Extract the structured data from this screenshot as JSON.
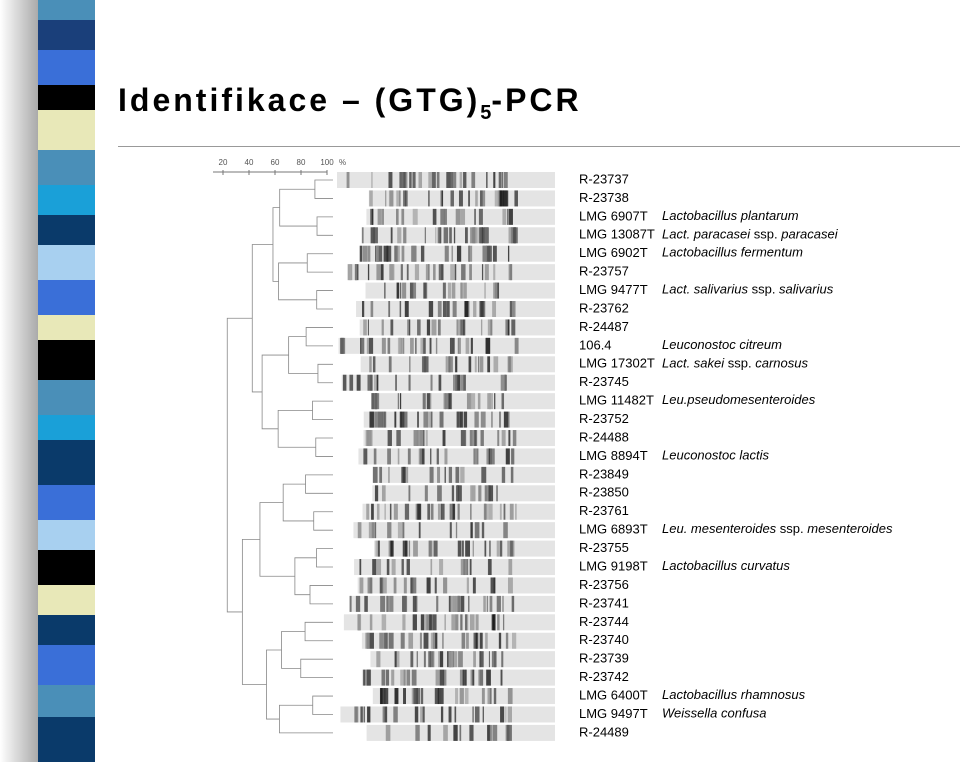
{
  "title": {
    "text": "Identifikace – (GTG)",
    "subscript": "5",
    "suffix": "-PCR"
  },
  "scale": {
    "ticks": [
      20,
      40,
      60,
      80,
      100
    ],
    "unit": "%"
  },
  "rows": [
    {
      "code": "R-23737",
      "name": null
    },
    {
      "code": "R-23738",
      "name": null
    },
    {
      "code": "LMG 6907T",
      "name": "Lactobacillus plantarum"
    },
    {
      "code": "LMG 13087T",
      "name": "Lact. paracasei ssp. paracasei"
    },
    {
      "code": "LMG 6902T",
      "name": "Lactobacillus fermentum"
    },
    {
      "code": "R-23757",
      "name": null
    },
    {
      "code": "LMG 9477T",
      "name": "Lact. salivarius ssp. salivarius"
    },
    {
      "code": "R-23762",
      "name": null
    },
    {
      "code": "R-24487",
      "name": null
    },
    {
      "code": "106.4",
      "name": "Leuconostoc citreum"
    },
    {
      "code": "LMG 17302T",
      "name": "Lact. sakei ssp. carnosus"
    },
    {
      "code": "R-23745",
      "name": null
    },
    {
      "code": "LMG 11482T",
      "name": "Leu.pseudomesenteroides"
    },
    {
      "code": "R-23752",
      "name": null
    },
    {
      "code": "R-24488",
      "name": null
    },
    {
      "code": "LMG 8894T",
      "name": "Leuconostoc lactis"
    },
    {
      "code": "R-23849",
      "name": null
    },
    {
      "code": "R-23850",
      "name": null
    },
    {
      "code": "R-23761",
      "name": null
    },
    {
      "code": "LMG 6893T",
      "name": "Leu.  mesenteroides ssp. mesenteroides"
    },
    {
      "code": "R-23755",
      "name": null
    },
    {
      "code": "LMG 9198T",
      "name": "Lactobacillus curvatus"
    },
    {
      "code": "R-23756",
      "name": null
    },
    {
      "code": "R-23741",
      "name": null
    },
    {
      "code": "R-23744",
      "name": null
    },
    {
      "code": "R-23740",
      "name": null
    },
    {
      "code": "R-23739",
      "name": null
    },
    {
      "code": "R-23742",
      "name": null
    },
    {
      "code": "LMG 6400T",
      "name": "Lactobacillus rhamnosus"
    },
    {
      "code": "LMG 9497T",
      "name": "Weissella confusa"
    },
    {
      "code": "R-24489",
      "name": null
    }
  ]
}
